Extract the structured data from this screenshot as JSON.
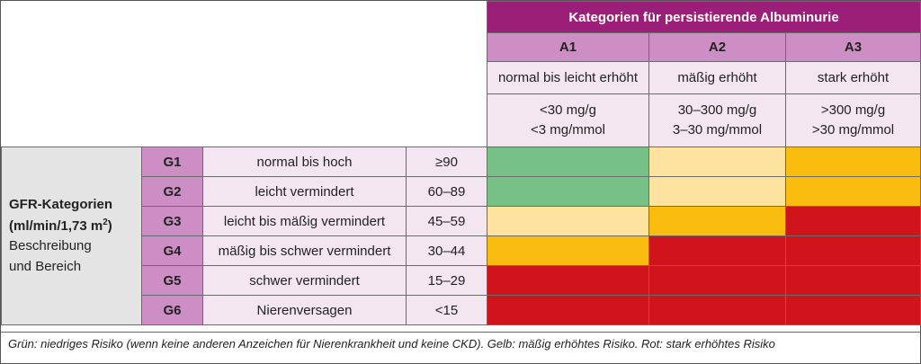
{
  "header": {
    "title": "Kategorien für persistierende Albuminurie",
    "columns": [
      {
        "code": "A1",
        "description": "normal bis leicht erhöht",
        "range_line1": "<30 mg/g",
        "range_line2": "<3 mg/mmol"
      },
      {
        "code": "A2",
        "description": "mäßig erhöht",
        "range_line1": "30–300 mg/g",
        "range_line2": "3–30 mg/mmol"
      },
      {
        "code": "A3",
        "description": "stark erhöht",
        "range_line1": ">300 mg/g",
        "range_line2": ">30 mg/mmol"
      }
    ]
  },
  "side": {
    "title_line1": "GFR-Kategorien",
    "title_line2_pre": "(ml/min/1,73 m",
    "title_line2_sup": "2",
    "title_line2_post": ")",
    "subtitle_line1": "Beschreibung",
    "subtitle_line2": "und Bereich"
  },
  "rows": [
    {
      "code": "G1",
      "description": "normal bis hoch",
      "range": "≥90",
      "risk": [
        "green",
        "lightyellow",
        "orange"
      ]
    },
    {
      "code": "G2",
      "description": "leicht vermindert",
      "range": "60–89",
      "risk": [
        "green",
        "lightyellow",
        "orange"
      ]
    },
    {
      "code": "G3",
      "description": "leicht bis mäßig vermindert",
      "range": "45–59",
      "risk": [
        "lightyellow",
        "orange",
        "red"
      ]
    },
    {
      "code": "G4",
      "description": "mäßig bis schwer vermindert",
      "range": "30–44",
      "risk": [
        "orange",
        "red",
        "red"
      ]
    },
    {
      "code": "G5",
      "description": "schwer vermindert",
      "range": "15–29",
      "risk": [
        "red",
        "red",
        "red"
      ]
    },
    {
      "code": "G6",
      "description": "Nierenversagen",
      "range": "<15",
      "risk": [
        "red",
        "red",
        "red"
      ]
    }
  ],
  "risk_colors": {
    "green": "#77c086",
    "lightyellow": "#fde39d",
    "orange": "#f9bc0f",
    "red": "#d1141c"
  },
  "footnote": "Grün: niedriges Risiko (wenn keine anderen Anzeichen für Nierenkrankheit und keine CKD). Gelb: mäßig erhöhtes Risiko. Rot: stark erhöhtes Risiko"
}
